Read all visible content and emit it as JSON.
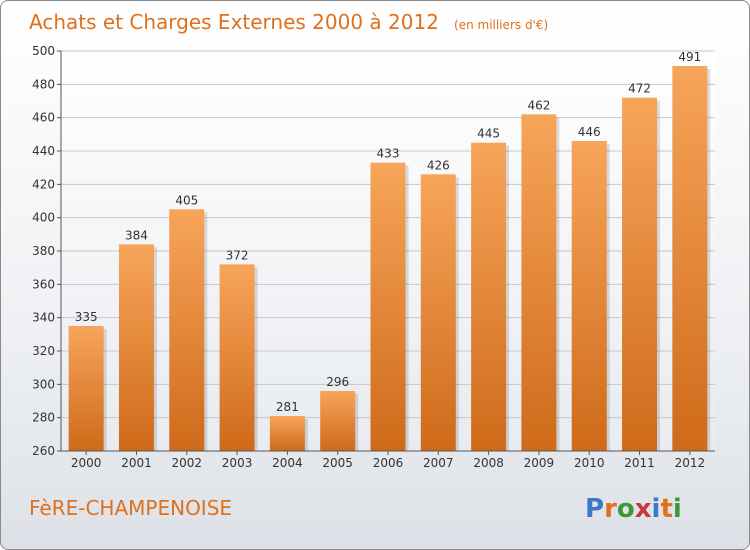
{
  "chart_data": {
    "type": "bar",
    "title": "Achats et Charges Externes 2000 à 2012",
    "subtitle": "(en milliers d'€)",
    "categories": [
      "2000",
      "2001",
      "2002",
      "2003",
      "2004",
      "2005",
      "2006",
      "2007",
      "2008",
      "2009",
      "2010",
      "2011",
      "2012"
    ],
    "values": [
      335,
      384,
      405,
      372,
      281,
      296,
      433,
      426,
      445,
      462,
      446,
      472,
      491
    ],
    "yticks": [
      "260",
      "280",
      "300",
      "320",
      "340",
      "360",
      "380",
      "400",
      "420",
      "440",
      "460",
      "480",
      "500"
    ],
    "ylim": [
      260,
      500
    ],
    "grid": true,
    "bar_color": "#f0923a",
    "bar_color_dark": "#cf6a1a"
  },
  "footer": {
    "city": "FèRE-CHAMPENOISE"
  },
  "logo": {
    "letters": [
      "P",
      "r",
      "o",
      "x",
      "i",
      "t",
      "i"
    ],
    "colors": [
      "#3a78c8",
      "#e0701c",
      "#3a9a3a",
      "#c83a3a",
      "#3a78c8",
      "#e0701c",
      "#3a9a3a"
    ]
  }
}
